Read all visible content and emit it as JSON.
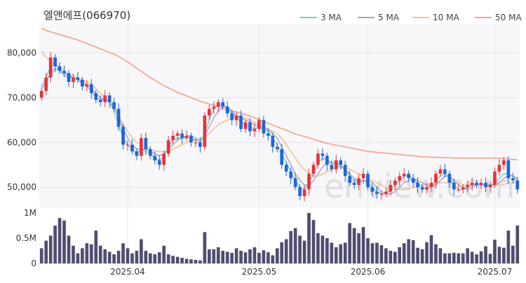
{
  "chart_data": {
    "type": "candlestick",
    "title": "엘앤에프(066970)",
    "legend": [
      {
        "label": "3 MA",
        "color": "#6fcfc4"
      },
      {
        "label": "5 MA",
        "color": "#b59ad0"
      },
      {
        "label": "10 MA",
        "color": "#f2c48d"
      },
      {
        "label": "50 MA",
        "color": "#f4a08a"
      }
    ],
    "legend_position": "top-right",
    "price_axis": {
      "ticks": [
        "80,000",
        "70,000",
        "60,000",
        "50,000"
      ],
      "tick_values": [
        80000,
        70000,
        60000,
        50000
      ],
      "range": [
        45500,
        86500
      ]
    },
    "volume_axis": {
      "ticks": [
        "1M",
        "0.5M",
        "0"
      ],
      "tick_values": [
        1000000,
        500000,
        0
      ],
      "range": [
        0,
        1000000
      ]
    },
    "x_ticks": [
      {
        "label": "2025.04",
        "index": 19
      },
      {
        "label": "2025.05",
        "index": 48
      },
      {
        "label": "2025.06",
        "index": 72
      },
      {
        "label": "2025.07",
        "index": 100
      }
    ],
    "up_color": "#e8323c",
    "down_color": "#1f66d9",
    "volume_color": "#4f4d6f",
    "watermark": "enview.com",
    "grid": true,
    "closes": [
      71500,
      74500,
      79000,
      77000,
      76000,
      75500,
      73500,
      74500,
      74000,
      72500,
      73000,
      71000,
      69500,
      69000,
      70500,
      69000,
      67500,
      63500,
      59500,
      59500,
      58000,
      57000,
      61000,
      58500,
      57000,
      56000,
      55000,
      57500,
      60500,
      61500,
      62000,
      61000,
      61500,
      60000,
      60000,
      59000,
      66000,
      67500,
      68000,
      69000,
      68000,
      66500,
      65000,
      66000,
      63000,
      64500,
      62500,
      63000,
      65000,
      62000,
      61500,
      59000,
      58500,
      55000,
      53500,
      52000,
      50000,
      48000,
      49500,
      53000,
      55000,
      57500,
      57000,
      55000,
      54000,
      56000,
      55000,
      52500,
      51000,
      50500,
      52000,
      53000,
      50000,
      49000,
      48500,
      48500,
      49000,
      50500,
      51500,
      52500,
      53000,
      52000,
      51000,
      50000,
      49500,
      50000,
      51000,
      53000,
      54000,
      53000,
      51000,
      49500,
      49500,
      50000,
      50500,
      51000,
      50500,
      51000,
      50000,
      50500,
      53500,
      55000,
      56000,
      52000,
      51500,
      49500
    ],
    "ma3": [
      72500,
      74500,
      77000,
      77500,
      76000,
      75000,
      74500,
      74500,
      74000,
      73000,
      72500,
      71500,
      70000,
      69500,
      69500,
      69000,
      67000,
      64000,
      61000,
      59500,
      58500,
      57500,
      58500,
      58000,
      57500,
      56500,
      56000,
      57000,
      59000,
      60500,
      61000,
      61000,
      61000,
      61000,
      60500,
      60000,
      62000,
      65000,
      67500,
      68500,
      68500,
      67500,
      66500,
      65500,
      64500,
      64000,
      63500,
      63000,
      63500,
      63000,
      62500,
      61000,
      59500,
      57500,
      55500,
      53500,
      51500,
      50000,
      49500,
      51000,
      53000,
      55500,
      56500,
      56000,
      55500,
      55500,
      55000,
      54000,
      52500,
      51500,
      51000,
      51500,
      51000,
      50000,
      49000,
      48500,
      48500,
      49500,
      50500,
      51500,
      52500,
      52500,
      52000,
      51000,
      50000,
      49500,
      50000,
      51500,
      52500,
      53000,
      52000,
      50500,
      49500,
      49500,
      50000,
      50500,
      50500,
      50500,
      50500,
      50500,
      51000,
      52000,
      53000,
      53000,
      52500,
      51500
    ],
    "ma5": [
      72000,
      73500,
      75500,
      76500,
      76000,
      75500,
      75000,
      74500,
      74000,
      73500,
      73000,
      72000,
      71000,
      70000,
      69500,
      69000,
      68000,
      65500,
      63000,
      61000,
      59500,
      58500,
      58500,
      58500,
      58000,
      57500,
      57000,
      57500,
      58500,
      59500,
      60500,
      61000,
      61500,
      61500,
      61000,
      60500,
      61500,
      63500,
      65500,
      67000,
      68000,
      68000,
      67000,
      66000,
      65500,
      65000,
      64500,
      64000,
      63500,
      63000,
      63000,
      62000,
      61000,
      59000,
      57000,
      55000,
      53000,
      51500,
      50500,
      50500,
      51500,
      53000,
      54500,
      55500,
      55500,
      55000,
      54500,
      54000,
      53000,
      52000,
      51500,
      51500,
      51500,
      51000,
      50000,
      49000,
      48500,
      48500,
      49000,
      50000,
      51000,
      51500,
      52000,
      51500,
      51000,
      50500,
      50000,
      50500,
      51500,
      52500,
      52500,
      51500,
      50500,
      50000,
      49500,
      50000,
      50500,
      50500,
      50500,
      50500,
      50500,
      51000,
      52000,
      52500,
      52500,
      52000
    ],
    "ma10": [
      80500,
      79000,
      78000,
      77500,
      77000,
      76000,
      75000,
      75000,
      74500,
      74000,
      73500,
      73000,
      72000,
      71000,
      70000,
      69000,
      68000,
      66000,
      64000,
      62500,
      61000,
      60000,
      59500,
      59000,
      58500,
      58000,
      58000,
      58000,
      58000,
      58500,
      59000,
      59500,
      60000,
      60500,
      60500,
      60500,
      61000,
      62000,
      63000,
      64000,
      64500,
      65000,
      65500,
      65500,
      65500,
      65500,
      65000,
      64500,
      64000,
      63500,
      63000,
      62500,
      62000,
      61000,
      59500,
      58000,
      56500,
      55000,
      54000,
      53000,
      52500,
      52500,
      53000,
      53500,
      54000,
      54500,
      54500,
      54500,
      54000,
      53500,
      53000,
      52500,
      52000,
      51500,
      51000,
      50500,
      50000,
      49500,
      49500,
      49500,
      49500,
      49500,
      50000,
      50000,
      50500,
      50500,
      50500,
      50500,
      51000,
      51000,
      51000,
      51000,
      51000,
      50500,
      50500,
      50500,
      50500,
      50500,
      50500,
      50500,
      50500,
      50500,
      50500,
      51000,
      51000,
      51000
    ],
    "ma50": [
      85500,
      85000,
      84700,
      84400,
      84100,
      83800,
      83500,
      83200,
      82900,
      82500,
      82100,
      81700,
      81300,
      80900,
      80500,
      80100,
      79700,
      79200,
      78600,
      78000,
      77300,
      76600,
      75900,
      75200,
      74500,
      73900,
      73300,
      72700,
      72200,
      71700,
      71200,
      70800,
      70400,
      70000,
      69600,
      69200,
      68900,
      68600,
      68300,
      68000,
      67700,
      67400,
      67100,
      66800,
      66500,
      66200,
      65900,
      65500,
      65100,
      64700,
      64300,
      63900,
      63500,
      63100,
      62700,
      62300,
      61900,
      61600,
      61300,
      61000,
      60700,
      60400,
      60100,
      59800,
      59600,
      59400,
      59200,
      59000,
      58800,
      58600,
      58400,
      58200,
      58000,
      57900,
      57800,
      57700,
      57600,
      57500,
      57400,
      57300,
      57200,
      57100,
      57000,
      56900,
      56800,
      56800,
      56700,
      56700,
      56600,
      56600,
      56600,
      56500,
      56500,
      56500,
      56500,
      56500,
      56500,
      56500,
      56500,
      56500,
      56500,
      56500,
      56400,
      56300,
      56200,
      56100
    ],
    "volumes": [
      300000,
      450000,
      550000,
      750000,
      900000,
      850000,
      550000,
      350000,
      200000,
      300000,
      400000,
      380000,
      650000,
      350000,
      280000,
      230000,
      180000,
      250000,
      400000,
      300000,
      200000,
      250000,
      480000,
      250000,
      200000,
      180000,
      220000,
      350000,
      180000,
      150000,
      130000,
      110000,
      90000,
      80000,
      70000,
      60000,
      620000,
      280000,
      280000,
      320000,
      250000,
      230000,
      210000,
      300000,
      250000,
      220000,
      280000,
      320000,
      210000,
      260000,
      220000,
      160000,
      300000,
      420000,
      480000,
      640000,
      700000,
      550000,
      450000,
      1000000,
      860000,
      600000,
      550000,
      500000,
      410000,
      320000,
      380000,
      410000,
      800000,
      700000,
      600000,
      720000,
      500000,
      400000,
      410000,
      360000,
      300000,
      250000,
      230000,
      320000,
      400000,
      480000,
      460000,
      310000,
      280000,
      420000,
      560000,
      380000,
      300000,
      200000,
      200000,
      210000,
      200000,
      200000,
      300000,
      230000,
      180000,
      240000,
      340000,
      190000,
      470000,
      330000,
      310000,
      650000,
      350000,
      750000
    ]
  }
}
